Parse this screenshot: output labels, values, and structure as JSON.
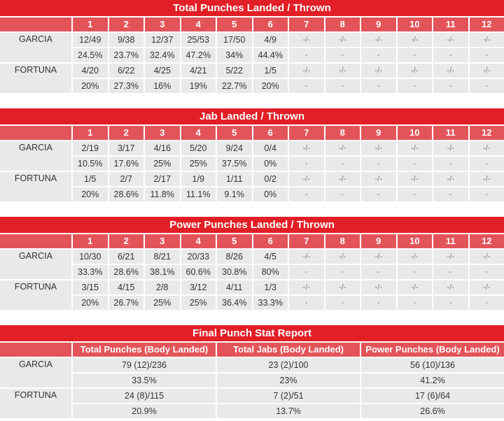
{
  "rounds": [
    "1",
    "2",
    "3",
    "4",
    "5",
    "6",
    "7",
    "8",
    "9",
    "10",
    "11",
    "12"
  ],
  "tables": [
    {
      "title": "Total Punches Landed / Thrown",
      "fighters": [
        {
          "name": "GARCIA",
          "landed_thrown": [
            "12/49",
            "9/38",
            "12/37",
            "25/53",
            "17/50",
            "4/9",
            "-/-",
            "-/-",
            "-/-",
            "-/-",
            "-/-",
            "-/-"
          ],
          "pct": [
            "24.5%",
            "23.7%",
            "32.4%",
            "47.2%",
            "34%",
            "44.4%",
            "-",
            "-",
            "-",
            "-",
            "-",
            "-"
          ]
        },
        {
          "name": "FORTUNA",
          "landed_thrown": [
            "4/20",
            "6/22",
            "4/25",
            "4/21",
            "5/22",
            "1/5",
            "-/-",
            "-/-",
            "-/-",
            "-/-",
            "-/-",
            "-/-"
          ],
          "pct": [
            "20%",
            "27.3%",
            "16%",
            "19%",
            "22.7%",
            "20%",
            "-",
            "-",
            "-",
            "-",
            "-",
            "-"
          ]
        }
      ]
    },
    {
      "title": "Jab Landed / Thrown",
      "fighters": [
        {
          "name": "GARCIA",
          "landed_thrown": [
            "2/19",
            "3/17",
            "4/16",
            "5/20",
            "9/24",
            "0/4",
            "-/-",
            "-/-",
            "-/-",
            "-/-",
            "-/-",
            "-/-"
          ],
          "pct": [
            "10.5%",
            "17.6%",
            "25%",
            "25%",
            "37.5%",
            "0%",
            "-",
            "-",
            "-",
            "-",
            "-",
            "-"
          ]
        },
        {
          "name": "FORTUNA",
          "landed_thrown": [
            "1/5",
            "2/7",
            "2/17",
            "1/9",
            "1/11",
            "0/2",
            "-/-",
            "-/-",
            "-/-",
            "-/-",
            "-/-",
            "-/-"
          ],
          "pct": [
            "20%",
            "28.6%",
            "11.8%",
            "11.1%",
            "9.1%",
            "0%",
            "-",
            "-",
            "-",
            "-",
            "-",
            "-"
          ]
        }
      ]
    },
    {
      "title": "Power Punches Landed / Thrown",
      "fighters": [
        {
          "name": "GARCIA",
          "landed_thrown": [
            "10/30",
            "6/21",
            "8/21",
            "20/33",
            "8/26",
            "4/5",
            "-/-",
            "-/-",
            "-/-",
            "-/-",
            "-/-",
            "-/-"
          ],
          "pct": [
            "33.3%",
            "28.6%",
            "38.1%",
            "60.6%",
            "30.8%",
            "80%",
            "-",
            "-",
            "-",
            "-",
            "-",
            "-"
          ]
        },
        {
          "name": "FORTUNA",
          "landed_thrown": [
            "3/15",
            "4/15",
            "2/8",
            "3/12",
            "4/11",
            "1/3",
            "-/-",
            "-/-",
            "-/-",
            "-/-",
            "-/-",
            "-/-"
          ],
          "pct": [
            "20%",
            "26.7%",
            "25%",
            "25%",
            "36.4%",
            "33.3%",
            "-",
            "-",
            "-",
            "-",
            "-",
            "-"
          ]
        }
      ]
    }
  ],
  "final": {
    "title": "Final Punch Stat Report",
    "headers": [
      "Total Punches (Body Landed)",
      "Total Jabs (Body Landed)",
      "Power Punches (Body Landed)"
    ],
    "fighters": [
      {
        "name": "GARCIA",
        "values": [
          "79 (12)/236",
          "23 (2)/100",
          "56 (10)/136"
        ],
        "pct": [
          "33.5%",
          "23%",
          "41.2%"
        ]
      },
      {
        "name": "FORTUNA",
        "values": [
          "24 (8)/115",
          "7 (2)/51",
          "17 (6)/64"
        ],
        "pct": [
          "20.9%",
          "13.7%",
          "26.6%"
        ]
      }
    ]
  },
  "colors": {
    "title_red": "#e21f26",
    "header_red": "#e3545a",
    "cell_gray": "#e9e9e9"
  }
}
